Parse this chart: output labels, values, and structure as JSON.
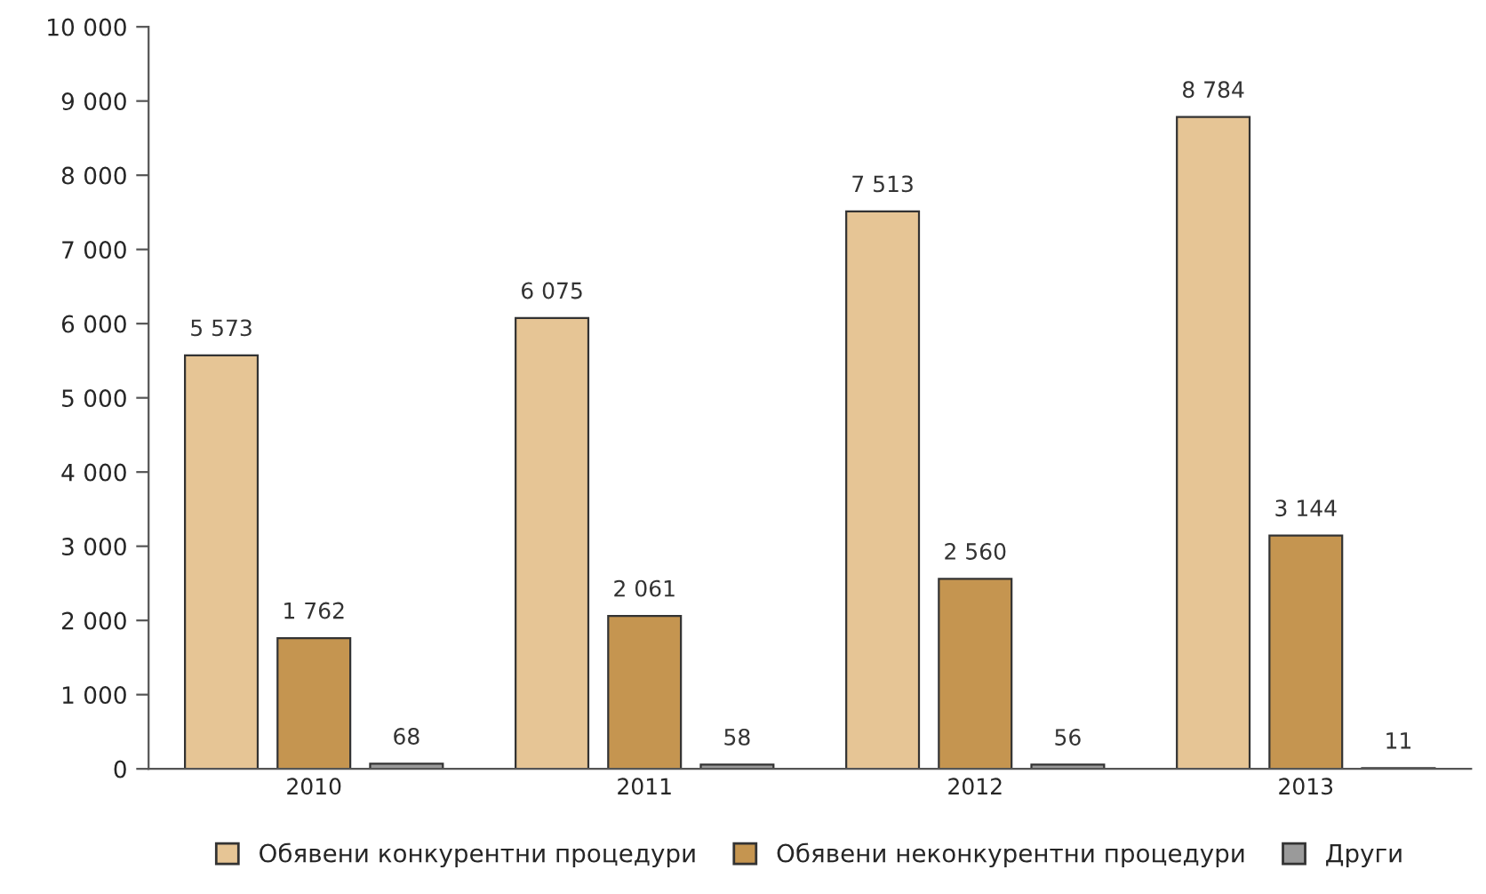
{
  "chart_data": {
    "type": "bar",
    "categories": [
      "2010",
      "2011",
      "2012",
      "2013"
    ],
    "series": [
      {
        "name": "Обявени конкурентни процедури",
        "color": "#e6c595",
        "values": [
          5573,
          6075,
          7513,
          8784
        ],
        "value_labels": [
          "5 573",
          "6 075",
          "7 513",
          "8 784"
        ]
      },
      {
        "name": "Обявени неконкурентни процедури",
        "color": "#c59550",
        "values": [
          1762,
          2061,
          2560,
          3144
        ],
        "value_labels": [
          "1 762",
          "2 061",
          "2 560",
          "3 144"
        ]
      },
      {
        "name": "Други",
        "color": "#9a9a9a",
        "values": [
          68,
          58,
          56,
          11
        ],
        "value_labels": [
          "68",
          "58",
          "56",
          "11"
        ]
      }
    ],
    "ylim": [
      0,
      10000
    ],
    "yticks": [
      {
        "value": 0,
        "label": "0"
      },
      {
        "value": 1000,
        "label": "1 000"
      },
      {
        "value": 2000,
        "label": "2 000"
      },
      {
        "value": 3000,
        "label": "3 000"
      },
      {
        "value": 4000,
        "label": "4 000"
      },
      {
        "value": 5000,
        "label": "5 000"
      },
      {
        "value": 6000,
        "label": "6 000"
      },
      {
        "value": 7000,
        "label": "7 000"
      },
      {
        "value": 8000,
        "label": "8 000"
      },
      {
        "value": 9000,
        "label": "9 000"
      },
      {
        "value": 10000,
        "label": "10 000"
      }
    ],
    "grid": false,
    "legend": "bottom"
  }
}
